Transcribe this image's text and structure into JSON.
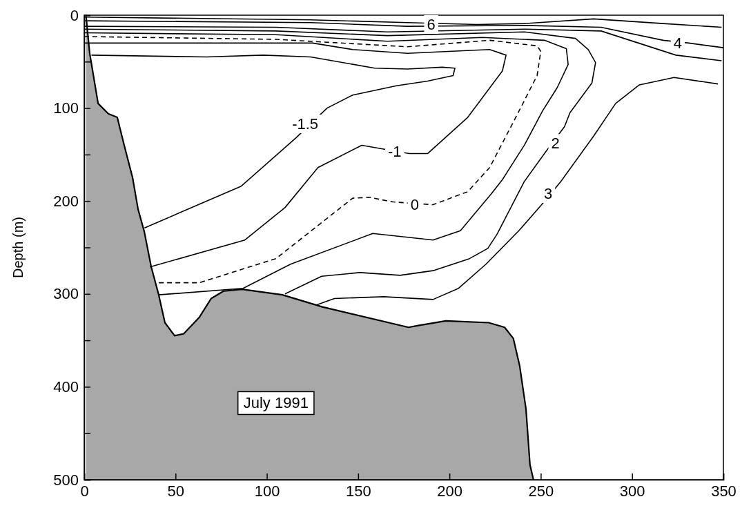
{
  "chart_data": {
    "type": "line",
    "ylabel": "Depth (m)",
    "xlim": [
      0,
      350
    ],
    "xticks": [
      0,
      50,
      100,
      150,
      200,
      250,
      300,
      350
    ],
    "ylim": [
      500,
      0
    ],
    "yticks": [
      0,
      {
        "value": 50,
        "label": null
      },
      100,
      {
        "value": 150,
        "label": null
      },
      200,
      {
        "value": 250,
        "label": null
      },
      300,
      {
        "value": 350,
        "label": null
      },
      400,
      {
        "value": 450,
        "label": null
      },
      500
    ],
    "series": [
      {
        "type": "line",
        "color": "#000000",
        "line_style": "solid",
        "x": [
          1,
          3,
          7.6,
          13.2,
          18.1,
          21.9,
          26.5,
          29.5,
          32.9,
          36.7,
          40.8,
          44.2,
          49.5,
          54.4,
          63.1,
          69.5,
          76.3,
          86.5,
          108.5,
          130.4,
          177.6,
          182.9,
          198,
          221.5,
          230.2,
          235,
          238.5,
          241.9,
          244.1,
          246
        ],
        "values": [
          1,
          41,
          95,
          106,
          110,
          140,
          175,
          209,
          233,
          271,
          301,
          331,
          345,
          343,
          325,
          305,
          297,
          295,
          301,
          314,
          336,
          334,
          329,
          331,
          336,
          348,
          378,
          424,
          484,
          500
        ]
      },
      {
        "type": "line",
        "color": "#000000",
        "line_style": "solid",
        "x": [
          0,
          124,
          177,
          215,
          241,
          279,
          317,
          349
        ],
        "values": [
          2,
          5,
          8,
          10,
          9,
          4,
          9,
          13
        ]
      },
      {
        "type": "line",
        "color": "#000000",
        "line_style": "solid",
        "x": [
          0,
          124,
          177,
          241,
          283,
          317,
          331,
          350
        ],
        "values": [
          6,
          8,
          12,
          11,
          13,
          27,
          30,
          35
        ]
      },
      {
        "type": "line",
        "color": "#000000",
        "line_style": "solid",
        "x": [
          0,
          105,
          166,
          241,
          283,
          324,
          349
        ],
        "values": [
          12,
          13,
          18,
          15,
          17,
          43,
          49
        ]
      },
      {
        "type": "line",
        "color": "#000000",
        "line_style": "solid",
        "x": [
          347,
          323,
          304,
          291,
          279,
          261,
          250,
          238,
          220,
          205,
          191,
          164,
          137,
          127
        ],
        "values": [
          74,
          67,
          75,
          95,
          130,
          179,
          205,
          232,
          268,
          294,
          306,
          303,
          305,
          312
        ]
      },
      {
        "type": "line",
        "color": "#000000",
        "line_style": "solid",
        "x": [
          0,
          105,
          166,
          241,
          269,
          276,
          280,
          278,
          266,
          263,
          252,
          241,
          226,
          221,
          211,
          191,
          173,
          151,
          130,
          110
        ],
        "values": [
          15,
          17,
          22,
          18,
          25,
          37,
          51,
          73,
          105,
          120,
          149,
          179,
          236,
          251,
          262,
          275,
          280,
          277,
          281,
          300
        ]
      },
      {
        "type": "line",
        "color": "#000000",
        "line_style": "solid",
        "x": [
          0,
          105,
          166,
          218,
          252,
          264,
          265,
          259,
          251,
          241,
          229,
          223,
          206,
          191,
          158,
          113,
          87,
          41
        ],
        "values": [
          19,
          21,
          28,
          24,
          27,
          36,
          53,
          78,
          103,
          140,
          177,
          192,
          232,
          242,
          235,
          268,
          294,
          301
        ]
      },
      {
        "type": "line",
        "color": "#000000",
        "line_style": "dashed",
        "x": [
          0,
          105,
          177,
          222,
          248,
          250,
          248,
          235,
          222,
          210,
          191,
          169,
          156,
          147,
          105,
          63,
          39
        ],
        "values": [
          23,
          26,
          34,
          27,
          33,
          39,
          65,
          115,
          164,
          190,
          204,
          201,
          196,
          197,
          262,
          288,
          288
        ]
      },
      {
        "type": "line",
        "color": "#000000",
        "line_style": "solid",
        "x": [
          0,
          125,
          147,
          177,
          222,
          231,
          229,
          210,
          188,
          178,
          152,
          128,
          110,
          88,
          36
        ],
        "values": [
          30,
          30,
          37,
          41,
          37,
          43,
          60,
          110,
          149,
          149,
          140,
          164,
          207,
          242,
          271
        ]
      },
      {
        "type": "line",
        "color": "#000000",
        "line_style": "solid",
        "x": [
          4,
          67,
          98,
          124,
          159,
          177,
          196,
          203,
          202,
          188,
          171,
          147,
          133,
          116,
          86,
          33
        ],
        "values": [
          43,
          45,
          43,
          45,
          57,
          58,
          56,
          57,
          65,
          71,
          76,
          86,
          100,
          132,
          184,
          229
        ]
      }
    ],
    "annotations": [
      {
        "text": "6",
        "x": 190,
        "y": 10
      },
      {
        "text": "4",
        "x": 325,
        "y": 30
      },
      {
        "text": "-1.5",
        "x": 121,
        "y": 117
      },
      {
        "text": "-1",
        "x": 170,
        "y": 147
      },
      {
        "text": "0",
        "x": 181,
        "y": 204
      },
      {
        "text": "2",
        "x": 258,
        "y": 138
      },
      {
        "text": "3",
        "x": 254,
        "y": 192
      },
      "July 1991"
    ]
  }
}
